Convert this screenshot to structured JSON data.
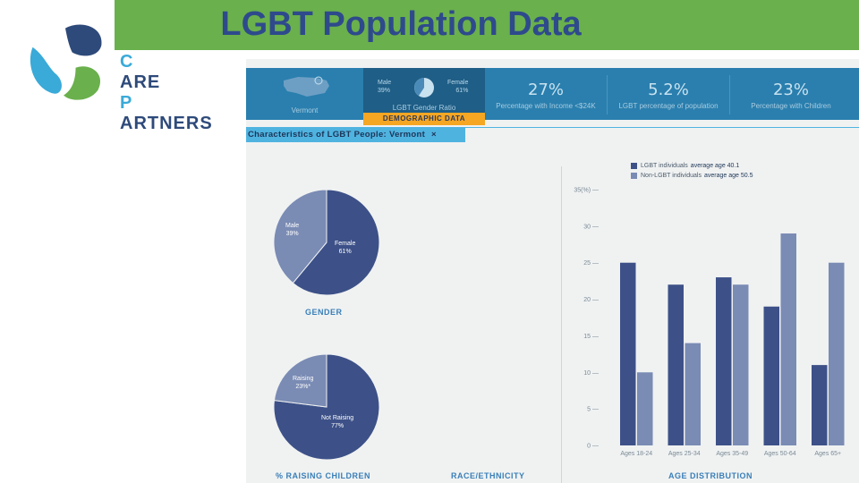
{
  "slide": {
    "title": "LGBT Population Data",
    "logo": {
      "line1_accent": "C",
      "line1_rest": "ARE",
      "line2_accent": "P",
      "line2_rest": "ARTNERS"
    },
    "colors": {
      "title_bar": "#6ab04c",
      "title_text": "#2e4a8c",
      "dark_series": "#3d5188",
      "light_series": "#7a8bb4"
    }
  },
  "dashboard": {
    "map_state": "Vermont",
    "gender_ratio": {
      "male_label": "Male",
      "male_value": "39%",
      "female_label": "Female",
      "female_value": "61%",
      "caption": "LGBT Gender Ratio"
    },
    "stats": [
      {
        "value": "27%",
        "label": "Percentage with Income <$24K"
      },
      {
        "value": "5.2%",
        "label": "LGBT percentage of population"
      },
      {
        "value": "23%",
        "label": "Percentage with Children"
      }
    ],
    "demographic_tab": "DEMOGRAPHIC DATA",
    "characteristics_label": "Characteristics of LGBT People:",
    "characteristics_state": "Vermont",
    "close_glyph": "×",
    "section_labels": {
      "gender": "GENDER",
      "raising": "% RAISING CHILDREN",
      "race": "RACE/ETHNICITY",
      "age": "AGE DISTRIBUTION"
    }
  },
  "chart_data": [
    {
      "type": "pie",
      "title": "GENDER",
      "slices": [
        {
          "label": "Male",
          "display": "39%",
          "value": 39
        },
        {
          "label": "Female",
          "display": "61%",
          "value": 61
        }
      ]
    },
    {
      "type": "pie",
      "title": "% RAISING CHILDREN",
      "slices": [
        {
          "label": "Raising",
          "display": "23%*",
          "value": 23
        },
        {
          "label": "Not Raising",
          "display": "77%",
          "value": 77
        }
      ]
    },
    {
      "type": "bar",
      "title": "AGE DISTRIBUTION",
      "categories": [
        "Ages 18-24",
        "Ages 25-34",
        "Ages 35-49",
        "Ages 50-64",
        "Ages 65+"
      ],
      "series": [
        {
          "name": "LGBT individuals",
          "note": "average age 40.1",
          "values": [
            25,
            22,
            23,
            19,
            11
          ]
        },
        {
          "name": "Non-LGBT individuals",
          "note": "average age 50.5",
          "values": [
            10,
            14,
            22,
            29,
            25
          ]
        }
      ],
      "yticks": [
        "0",
        "5",
        "10",
        "15",
        "20",
        "25",
        "30",
        "35(%)"
      ],
      "ylim": [
        0,
        35
      ]
    }
  ]
}
